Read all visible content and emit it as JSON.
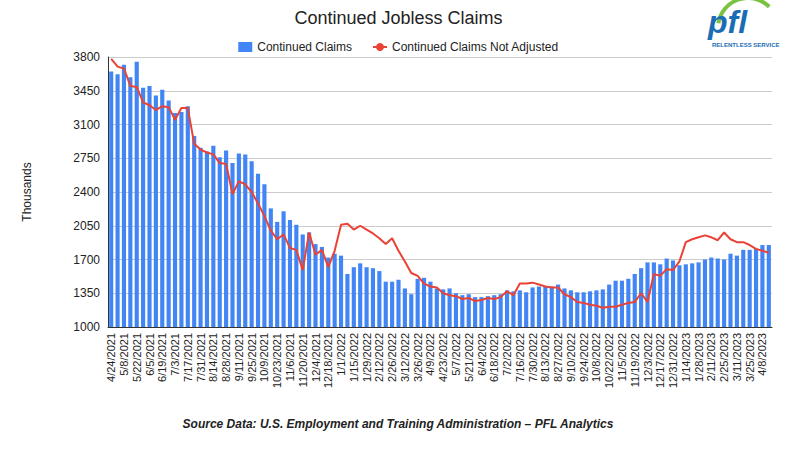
{
  "chart_data": {
    "type": "bar",
    "title": "Continued Jobless Claims",
    "y_label": "Thousands",
    "source": "Source Data: U.S. Employment and Training Administration – PFL Analytics",
    "logo": {
      "text": "pfl",
      "tagline": "RELENTLESS SERVICE"
    },
    "categories": [
      "4/24/2021",
      null,
      "5/8/2021",
      null,
      "5/22/2021",
      null,
      "6/5/2021",
      null,
      "6/19/2021",
      null,
      "7/3/2021",
      null,
      "7/17/2021",
      null,
      "7/31/2021",
      null,
      "8/14/2021",
      null,
      "8/28/2021",
      null,
      "9/11/2021",
      null,
      "9/25/2021",
      null,
      "10/9/2021",
      null,
      "10/23/2021",
      null,
      "11/6/2021",
      null,
      "11/20/2021",
      null,
      "12/4/2021",
      null,
      "12/18/2021",
      null,
      "1/1/2022",
      null,
      "1/15/2022",
      null,
      "1/29/2022",
      null,
      "2/12/2022",
      null,
      "2/26/2022",
      null,
      "3/12/2022",
      null,
      "3/26/2022",
      null,
      "4/9/2022",
      null,
      "4/23/2022",
      null,
      "5/7/2022",
      null,
      "5/21/2022",
      null,
      "6/4/2022",
      null,
      "6/18/2022",
      null,
      "7/2/2022",
      null,
      "7/16/2022",
      null,
      "7/30/2022",
      null,
      "8/13/2022",
      null,
      "8/27/2022",
      null,
      "9/10/2022",
      null,
      "9/24/2022",
      null,
      "10/8/2022",
      null,
      "10/22/2022",
      null,
      "11/5/2022",
      null,
      "11/19/2022",
      null,
      "12/3/2022",
      null,
      "12/17/2022",
      null,
      "12/31/2022",
      null,
      "1/14/2023",
      null,
      "1/28/2023",
      null,
      "2/11/2023",
      null,
      "2/25/2023",
      null,
      "3/11/2023",
      null,
      "3/25/2023",
      null,
      "4/8/2023",
      null
    ],
    "series": [
      {
        "name": "Continued Claims",
        "type": "bar",
        "color": "#4285f4",
        "values": [
          3650,
          3620,
          3720,
          3590,
          3750,
          3480,
          3500,
          3400,
          3460,
          3350,
          3220,
          3230,
          3290,
          2980,
          2860,
          2820,
          2880,
          2760,
          2830,
          2700,
          2800,
          2790,
          2720,
          2590,
          2480,
          2230,
          2090,
          2200,
          2110,
          2060,
          1960,
          1980,
          1860,
          1830,
          1720,
          1760,
          1740,
          1550,
          1620,
          1660,
          1620,
          1610,
          1580,
          1470,
          1470,
          1490,
          1400,
          1340,
          1500,
          1510,
          1470,
          1400,
          1390,
          1400,
          1350,
          1330,
          1340,
          1310,
          1310,
          1320,
          1330,
          1340,
          1380,
          1370,
          1380,
          1360,
          1410,
          1420,
          1420,
          1420,
          1440,
          1400,
          1380,
          1360,
          1360,
          1370,
          1380,
          1390,
          1440,
          1480,
          1480,
          1500,
          1550,
          1610,
          1670,
          1670,
          1650,
          1710,
          1690,
          1640,
          1650,
          1660,
          1670,
          1700,
          1720,
          1710,
          1700,
          1760,
          1740,
          1800,
          1800,
          1810,
          1850,
          1850
        ]
      },
      {
        "name": "Continued Claims Not Adjusted",
        "type": "line",
        "color": "#ea4335",
        "values": [
          3780,
          3700,
          3680,
          3500,
          3490,
          3330,
          3300,
          3250,
          3290,
          3280,
          3150,
          3270,
          3270,
          2900,
          2840,
          2810,
          2790,
          2700,
          2690,
          2380,
          2510,
          2480,
          2400,
          2280,
          2150,
          2000,
          1910,
          1960,
          1820,
          1800,
          1590,
          1980,
          1750,
          1800,
          1620,
          1790,
          2060,
          2070,
          2010,
          2050,
          2010,
          1970,
          1920,
          1860,
          1920,
          1790,
          1680,
          1560,
          1530,
          1450,
          1420,
          1410,
          1350,
          1330,
          1320,
          1290,
          1300,
          1270,
          1280,
          1300,
          1290,
          1310,
          1370,
          1330,
          1450,
          1450,
          1460,
          1440,
          1420,
          1410,
          1410,
          1340,
          1310,
          1260,
          1250,
          1230,
          1220,
          1200,
          1210,
          1210,
          1230,
          1250,
          1260,
          1350,
          1260,
          1550,
          1530,
          1600,
          1590,
          1680,
          1880,
          1910,
          1930,
          1950,
          1930,
          1900,
          1980,
          1910,
          1880,
          1880,
          1850,
          1810,
          1790,
          1770
        ]
      }
    ],
    "ylim": [
      1000,
      3800
    ],
    "yticks": [
      1000,
      1350,
      1700,
      2050,
      2400,
      2750,
      3100,
      3450,
      3800
    ],
    "grid": true,
    "legend": "top"
  }
}
